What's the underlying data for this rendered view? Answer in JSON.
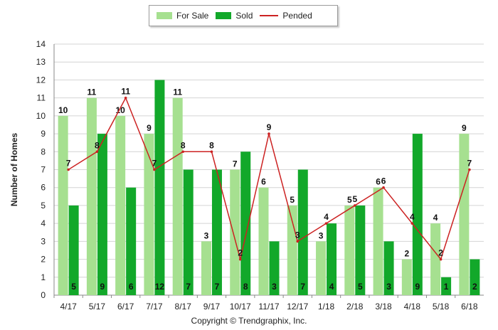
{
  "legend": {
    "for_sale": "For Sale",
    "sold": "Sold",
    "pended": "Pended"
  },
  "colors": {
    "for_sale": "#a6e090",
    "sold": "#12a82a",
    "pended": "#cc2222"
  },
  "copyright": "Copyright © Trendgraphix, Inc.",
  "chart_data": {
    "type": "bar",
    "ylabel": "Number of Homes",
    "ylim": [
      0,
      14
    ],
    "yticks": [
      0,
      1,
      2,
      3,
      4,
      5,
      6,
      7,
      8,
      9,
      10,
      11,
      12,
      13,
      14
    ],
    "grid": true,
    "legend_position": "top-center",
    "categories": [
      "4/17",
      "5/17",
      "6/17",
      "7/17",
      "8/17",
      "9/17",
      "10/17",
      "11/17",
      "12/17",
      "1/18",
      "2/18",
      "3/18",
      "4/18",
      "5/18",
      "6/18"
    ],
    "series": [
      {
        "name": "For Sale",
        "type": "bar",
        "values": [
          10,
          11,
          10,
          9,
          11,
          3,
          7,
          6,
          5,
          3,
          5,
          6,
          2,
          4,
          9
        ]
      },
      {
        "name": "Sold",
        "type": "bar",
        "values": [
          5,
          9,
          6,
          12,
          7,
          7,
          8,
          3,
          7,
          4,
          5,
          3,
          9,
          1,
          2
        ]
      },
      {
        "name": "Pended",
        "type": "line",
        "values": [
          7,
          8,
          11,
          7,
          8,
          8,
          2,
          9,
          3,
          4,
          5,
          6,
          4,
          2,
          7
        ]
      }
    ]
  }
}
